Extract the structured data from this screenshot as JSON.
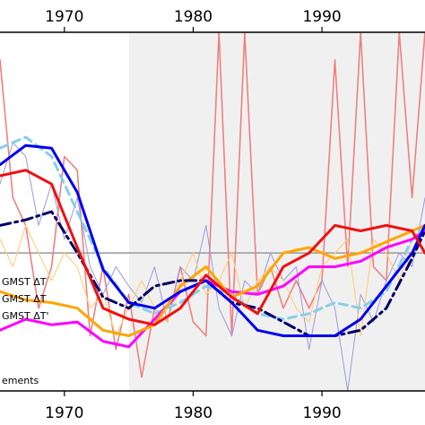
{
  "chart_data": {
    "type": "line",
    "xlim": [
      1965,
      1998
    ],
    "ylim": [
      -0.5,
      0.8
    ],
    "x_ticks": [
      1970,
      1980,
      1990
    ],
    "x_tick_labels": [
      "1970",
      "1980",
      "1990"
    ],
    "shaded_region": {
      "x_start": 1975,
      "x_end": 1998,
      "color": "#f0f0f0"
    },
    "zero_line": {
      "y": 0,
      "color": "#999999"
    },
    "legend": {
      "placement": "lower-left",
      "entries": [
        "GMST ΔT",
        "GMST ΔT",
        "GMST ΔT'",
        "ements"
      ]
    },
    "series": [
      {
        "color": "#f08080",
        "width": 1.6,
        "dash": "solid",
        "x": [
          1965,
          1966,
          1967,
          1968,
          1969,
          1970,
          1971,
          1972,
          1973,
          1974,
          1975,
          1976,
          1977,
          1978,
          1979,
          1980,
          1981,
          1982,
          1983,
          1984,
          1985,
          1986,
          1987,
          1988,
          1989,
          1990,
          1991,
          1992,
          1993,
          1994,
          1995,
          1996,
          1997,
          1998
        ],
        "y": [
          0.7,
          0.2,
          0.1,
          -0.2,
          -0.05,
          0.35,
          0.3,
          -0.3,
          -0.05,
          -0.35,
          -0.15,
          -0.45,
          -0.2,
          -0.25,
          -0.05,
          -0.25,
          -0.3,
          0.8,
          -0.3,
          0.8,
          -0.15,
          -0.05,
          -0.2,
          -0.1,
          -0.2,
          -0.1,
          0.7,
          -0.05,
          0.8,
          -0.05,
          -0.1,
          0.8,
          0.2,
          0.8
        ]
      },
      {
        "color": "#9a9ad8",
        "width": 1.0,
        "dash": "solid",
        "x": [
          1965,
          1966,
          1967,
          1968,
          1969,
          1970,
          1971,
          1972,
          1973,
          1974,
          1975,
          1976,
          1977,
          1978,
          1979,
          1980,
          1981,
          1982,
          1983,
          1984,
          1985,
          1986,
          1987,
          1988,
          1989,
          1990,
          1991,
          1992,
          1993,
          1994,
          1995,
          1996,
          1997,
          1998
        ],
        "y": [
          0.25,
          0.4,
          0.35,
          0.1,
          0.25,
          0.05,
          0.2,
          -0.05,
          -0.15,
          -0.05,
          -0.12,
          -0.18,
          -0.05,
          -0.25,
          -0.05,
          -0.1,
          0.1,
          -0.2,
          -0.3,
          -0.1,
          -0.15,
          0.0,
          -0.1,
          -0.05,
          -0.35,
          -0.1,
          -0.2,
          -0.5,
          -0.15,
          -0.25,
          -0.1,
          0.0,
          -0.05,
          0.2
        ]
      },
      {
        "color": "#ffd080",
        "width": 1.2,
        "dash": "solid",
        "x": [
          1965,
          1966,
          1967,
          1968,
          1969,
          1970,
          1971,
          1972,
          1973,
          1974,
          1975,
          1976,
          1977,
          1978,
          1979,
          1980,
          1981,
          1982,
          1983,
          1984,
          1985,
          1986,
          1987,
          1988,
          1989,
          1990,
          1991,
          1992,
          1993,
          1994,
          1995,
          1996,
          1997,
          1998
        ],
        "y": [
          0.05,
          -0.05,
          0.1,
          0.0,
          -0.1,
          0.0,
          -0.05,
          -0.2,
          -0.15,
          -0.3,
          -0.2,
          -0.1,
          -0.2,
          -0.25,
          -0.1,
          0.0,
          -0.15,
          -0.1,
          0.0,
          -0.2,
          -0.1,
          -0.05,
          -0.1,
          -0.2,
          -0.25,
          -0.05,
          0.0,
          0.05,
          -0.3,
          0.05,
          0.0,
          -0.1,
          0.05,
          0.1
        ]
      },
      {
        "color": "#87ceeb",
        "width": 3.0,
        "dash": "9,6",
        "x": [
          1965,
          1967,
          1969,
          1971,
          1973,
          1975,
          1977,
          1979,
          1981,
          1983,
          1985,
          1987,
          1989,
          1991,
          1993,
          1995,
          1997,
          1998
        ],
        "y": [
          0.38,
          0.42,
          0.35,
          0.15,
          -0.05,
          -0.18,
          -0.22,
          -0.18,
          -0.12,
          -0.15,
          -0.22,
          -0.24,
          -0.22,
          -0.18,
          -0.2,
          -0.14,
          0.05,
          0.1
        ]
      },
      {
        "color": "#ff00ff",
        "width": 3.0,
        "dash": "solid",
        "x": [
          1965,
          1967,
          1969,
          1971,
          1973,
          1975,
          1977,
          1979,
          1981,
          1983,
          1985,
          1987,
          1989,
          1991,
          1993,
          1995,
          1997,
          1998
        ],
        "y": [
          -0.28,
          -0.24,
          -0.26,
          -0.25,
          -0.32,
          -0.34,
          -0.24,
          -0.14,
          -0.1,
          -0.14,
          -0.15,
          -0.12,
          -0.05,
          -0.05,
          -0.03,
          0.02,
          0.05,
          0.08
        ]
      },
      {
        "color": "#ffa500",
        "width": 3.0,
        "dash": "solid",
        "x": [
          1965,
          1967,
          1969,
          1971,
          1973,
          1975,
          1977,
          1979,
          1981,
          1983,
          1985,
          1987,
          1989,
          1991,
          1993,
          1995,
          1997,
          1998
        ],
        "y": [
          -0.14,
          -0.17,
          -0.18,
          -0.2,
          -0.28,
          -0.3,
          -0.26,
          -0.12,
          -0.05,
          -0.16,
          -0.12,
          0.0,
          0.02,
          -0.02,
          0.0,
          0.04,
          0.08,
          0.1
        ]
      },
      {
        "color": "#000066",
        "width": 3.0,
        "dash": "12,5,3,5",
        "x": [
          1965,
          1967,
          1969,
          1971,
          1973,
          1975,
          1977,
          1979,
          1981,
          1983,
          1985,
          1987,
          1989,
          1991,
          1993,
          1995,
          1997,
          1998
        ],
        "y": [
          0.1,
          0.12,
          0.15,
          0.0,
          -0.16,
          -0.2,
          -0.12,
          -0.1,
          -0.1,
          -0.18,
          -0.2,
          -0.25,
          -0.3,
          -0.3,
          -0.28,
          -0.2,
          -0.02,
          0.08
        ]
      },
      {
        "color": "#0000ee",
        "width": 3.0,
        "dash": "solid",
        "x": [
          1965,
          1967,
          1969,
          1971,
          1973,
          1975,
          1977,
          1979,
          1981,
          1983,
          1985,
          1987,
          1989,
          1991,
          1993,
          1995,
          1997,
          1998
        ],
        "y": [
          0.32,
          0.39,
          0.38,
          0.22,
          -0.06,
          -0.18,
          -0.2,
          -0.14,
          -0.1,
          -0.18,
          -0.28,
          -0.3,
          -0.3,
          -0.3,
          -0.24,
          -0.12,
          0.0,
          0.1
        ]
      },
      {
        "color": "#ee1111",
        "width": 3.0,
        "dash": "solid",
        "x": [
          1965,
          1967,
          1969,
          1971,
          1973,
          1975,
          1977,
          1979,
          1981,
          1983,
          1985,
          1987,
          1989,
          1991,
          1993,
          1995,
          1997,
          1998
        ],
        "y": [
          0.28,
          0.3,
          0.25,
          0.02,
          -0.2,
          -0.24,
          -0.26,
          -0.2,
          -0.08,
          -0.16,
          -0.22,
          -0.05,
          0.0,
          0.1,
          0.08,
          0.1,
          0.08,
          0.0
        ]
      }
    ]
  }
}
